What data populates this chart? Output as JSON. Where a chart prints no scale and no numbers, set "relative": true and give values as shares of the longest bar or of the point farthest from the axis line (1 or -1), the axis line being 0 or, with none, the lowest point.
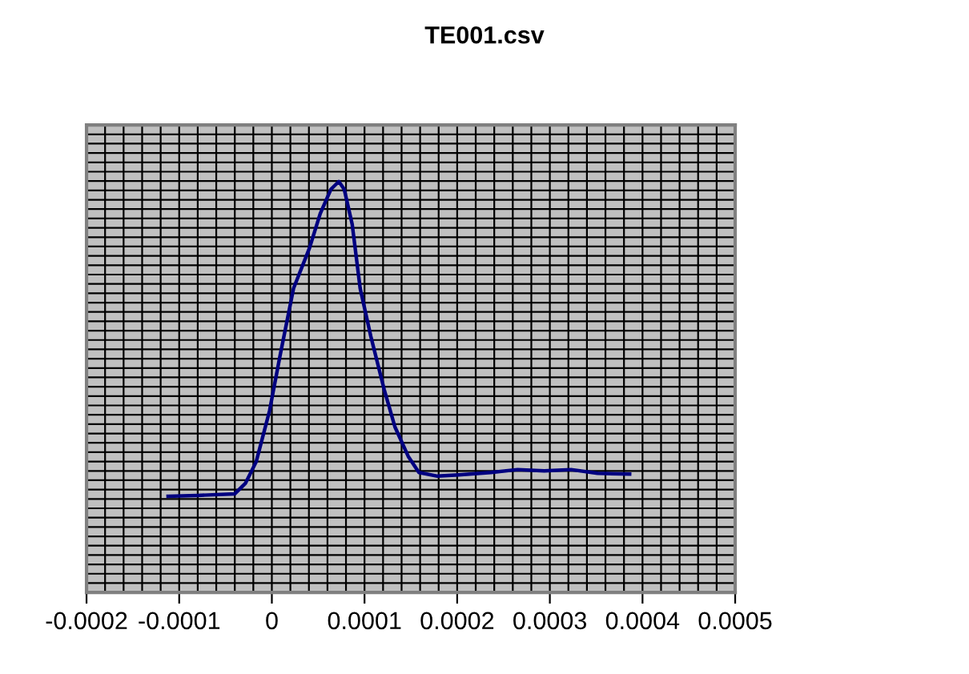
{
  "chart_data": {
    "type": "line",
    "title": "TE001.csv",
    "relative": true,
    "tick_labels": "x",
    "grid": true,
    "xlim": [
      -0.0002,
      0.0005
    ],
    "xticks": [
      -0.0002,
      -0.0001,
      0,
      0.0001,
      0.0002,
      0.0003,
      0.0004,
      0.0005
    ],
    "series": [
      {
        "color": "#000080",
        "x": [
          -0.000112,
          -8.03e-05,
          -4e-05,
          -2.84e-05,
          -1.69e-05,
          -2.5e-06,
          9e-06,
          2.34e-05,
          4.06e-05,
          5.22e-05,
          6.37e-05,
          7.23e-05,
          7.81e-05,
          8.67e-05,
          9.53e-05,
          0.0001068,
          0.0001212,
          0.0001328,
          0.0001472,
          0.0001587,
          0.0001788,
          0.0002018,
          0.0002364,
          0.0002652,
          0.000294,
          0.0003227,
          0.0003515,
          0.0003861
        ],
        "values": [
          0.234,
          0.236,
          0.24,
          0.266,
          0.318,
          0.442,
          0.578,
          0.74,
          0.838,
          0.922,
          0.981,
          1.0,
          0.981,
          0.896,
          0.74,
          0.623,
          0.494,
          0.403,
          0.331,
          0.292,
          0.283,
          0.286,
          0.292,
          0.299,
          0.296,
          0.299,
          0.29,
          0.288
        ]
      }
    ]
  }
}
